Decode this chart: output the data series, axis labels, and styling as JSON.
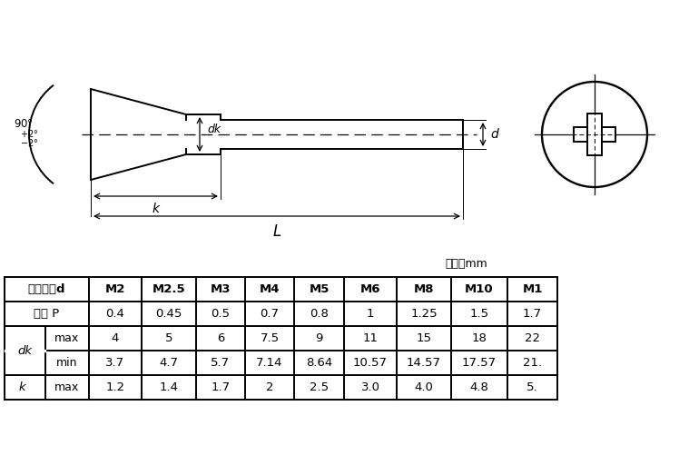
{
  "unit_label": "单位：mm",
  "table_headers": [
    "螺纹规格d",
    "M2",
    "M2.5",
    "M3",
    "M4",
    "M5",
    "M6",
    "M8",
    "M10",
    "M1"
  ],
  "row1_label": "螺距 P",
  "row1_values": [
    "0.4",
    "0.45",
    "0.5",
    "0.7",
    "0.8",
    "1",
    "1.25",
    "1.5",
    "1.7"
  ],
  "row2_label": "dk",
  "row2_sub1": "max",
  "row2_sub1_values": [
    "4",
    "5",
    "6",
    "7.5",
    "9",
    "11",
    "15",
    "18",
    "22"
  ],
  "row2_sub2": "min",
  "row2_sub2_values": [
    "3.7",
    "4.7",
    "5.7",
    "7.14",
    "8.64",
    "10.57",
    "14.57",
    "17.57",
    "21."
  ],
  "row3_label": "k",
  "row3_sub": "max",
  "row3_values": [
    "1.2",
    "1.4",
    "1.7",
    "2",
    "2.5",
    "3.0",
    "4.0",
    "4.8",
    "5."
  ],
  "bg_color": "#ffffff",
  "line_color": "#000000",
  "dim_dk": "dk",
  "dim_d": "d",
  "dim_k": "k",
  "dim_L": "L"
}
